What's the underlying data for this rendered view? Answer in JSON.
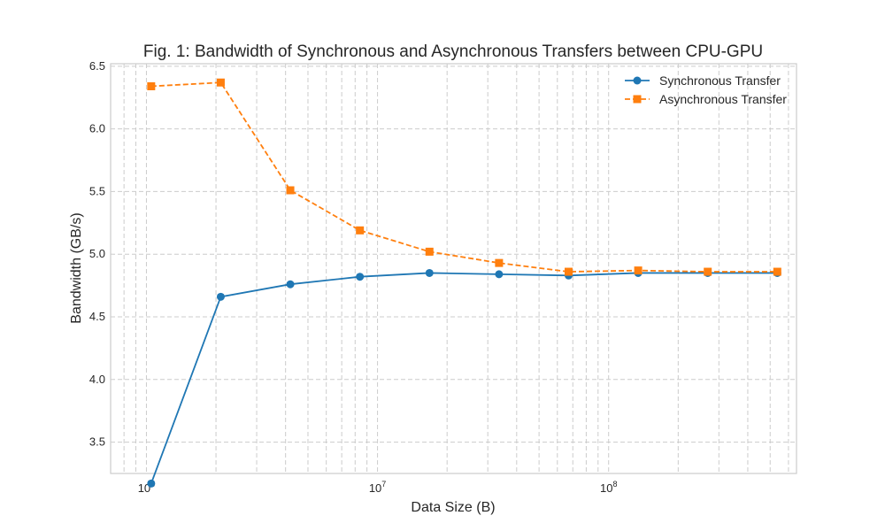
{
  "chart_data": {
    "type": "line",
    "title": "Fig. 1: Bandwidth of Synchronous and Asynchronous Transfers between CPU-GPU",
    "xlabel": "Data Size (B)",
    "ylabel": "Bandwidth (GB/s)",
    "xscale": "log",
    "xlim": [
      700000,
      650000000
    ],
    "ylim": [
      3.25,
      6.52
    ],
    "grid": true,
    "legend_position": "top-right",
    "x_major_ticks": [
      {
        "value": 1000000,
        "base": "10",
        "exp": "6"
      },
      {
        "value": 10000000,
        "base": "10",
        "exp": "7"
      },
      {
        "value": 100000000,
        "base": "10",
        "exp": "8"
      }
    ],
    "y_ticks": [
      3.5,
      4.0,
      4.5,
      5.0,
      5.5,
      6.0,
      6.5
    ],
    "y_tick_labels": [
      "3.5",
      "4.0",
      "4.5",
      "5.0",
      "5.5",
      "6.0",
      "6.5"
    ],
    "x": [
      1048576,
      2097152,
      4194304,
      8388608,
      16777216,
      33554432,
      67108864,
      134217728,
      268435456,
      536870912
    ],
    "series": [
      {
        "name": "Synchronous Transfer",
        "color": "#1f77b4",
        "marker": "circle",
        "linestyle": "solid",
        "values": [
          3.17,
          4.66,
          4.76,
          4.82,
          4.85,
          4.84,
          4.83,
          4.85,
          4.85,
          4.85
        ]
      },
      {
        "name": "Asynchronous Transfer",
        "color": "#ff7f0e",
        "marker": "square",
        "linestyle": "dashed",
        "values": [
          6.34,
          6.37,
          5.51,
          5.19,
          5.02,
          4.93,
          4.86,
          4.87,
          4.86,
          4.86
        ]
      }
    ]
  }
}
